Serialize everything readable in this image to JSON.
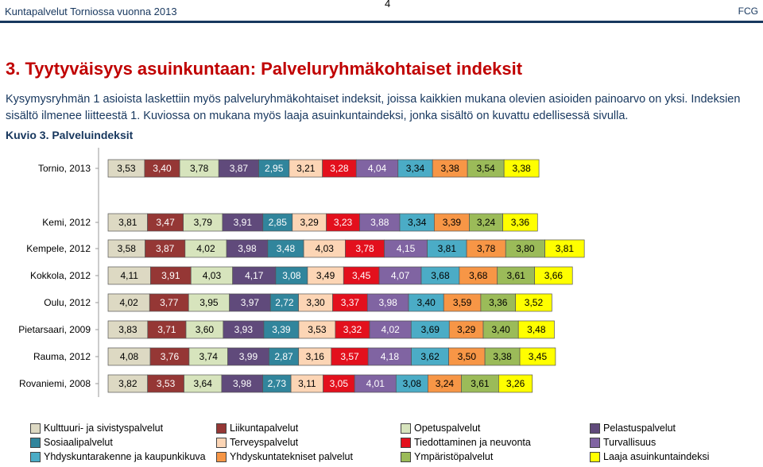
{
  "header": {
    "left": "Kuntapalvelut Torniossa vuonna 2013",
    "page": "4",
    "right": "FCG"
  },
  "heading": "3. Tyytyväisyys asuinkuntaan: Palveluryhmäkohtaiset indeksit",
  "intro": "Kysymysryhmän 1 asioista laskettiin myös palveluryhmäkohtaiset indeksit, joissa kaikkien mukana olevien asioiden painoarvo on yksi. Indeksien sisältö ilmenee liitteestä 1. Kuviossa on mukana myös laaja asuinkuntaindeksi, jonka sisältö on kuvattu edellisessä sivulla.",
  "caption": "Kuvio 3. Palveluindeksit",
  "chart_data": {
    "type": "bar",
    "orientation": "horizontal",
    "stacked": true,
    "categories": [
      "Tornio, 2013",
      "Kemi, 2012",
      "Kempele, 2012",
      "Kokkola, 2012",
      "Oulu, 2012",
      "Pietarsaari, 2009",
      "Rauma, 2012",
      "Rovaniemi, 2008"
    ],
    "legend_position": "bottom",
    "series": [
      {
        "name": "Kulttuuri- ja sivistyspalvelut",
        "color": "#ddd9c3",
        "text_color": "#000000",
        "labels": [
          "3,53",
          "3,81",
          "3,58",
          "4,11",
          "4,02",
          "3,83",
          "4,08",
          "3,82"
        ],
        "values": [
          3.53,
          3.81,
          3.58,
          4.11,
          4.02,
          3.83,
          4.08,
          3.82
        ]
      },
      {
        "name": "Liikuntapalvelut",
        "color": "#953735",
        "text_color": "#ffffff",
        "labels": [
          "3,40",
          "3,47",
          "3,87",
          "3,91",
          "3,77",
          "3,71",
          "3,76",
          "3,53"
        ],
        "values": [
          3.4,
          3.47,
          3.87,
          3.91,
          3.77,
          3.71,
          3.76,
          3.53
        ]
      },
      {
        "name": "Opetuspalvelut",
        "color": "#d7e4bd",
        "text_color": "#000000",
        "labels": [
          "3,78",
          "3,79",
          "4,02",
          "4,03",
          "3,95",
          "3,60",
          "3,74",
          "3,64"
        ],
        "values": [
          3.78,
          3.79,
          4.02,
          4.03,
          3.95,
          3.6,
          3.74,
          3.64
        ]
      },
      {
        "name": "Pelastuspalvelut",
        "color": "#604a7b",
        "text_color": "#ffffff",
        "labels": [
          "3,87",
          "3,91",
          "3,98",
          "4,17",
          "3,97",
          "3,93",
          "3,99",
          "3,98"
        ],
        "values": [
          3.87,
          3.91,
          3.98,
          4.17,
          3.97,
          3.93,
          3.99,
          3.98
        ]
      },
      {
        "name": "Sosiaalipalvelut",
        "color": "#31859c",
        "text_color": "#ffffff",
        "labels": [
          "2,95",
          "2,85",
          "3,48",
          "3,08",
          "2,72",
          "3,39",
          "2,87",
          "2,73"
        ],
        "values": [
          2.95,
          2.85,
          3.48,
          3.08,
          2.72,
          3.39,
          2.87,
          2.73
        ]
      },
      {
        "name": "Terveyspalvelut",
        "color": "#fcd5b5",
        "text_color": "#000000",
        "labels": [
          "3,21",
          "3,29",
          "4,03",
          "3,49",
          "3,30",
          "3,53",
          "3,16",
          "3,11"
        ],
        "values": [
          3.21,
          3.29,
          4.03,
          3.49,
          3.3,
          3.53,
          3.16,
          3.11
        ]
      },
      {
        "name": "Tiedottaminen ja neuvonta",
        "color": "#e3101d",
        "text_color": "#ffffff",
        "labels": [
          "3,28",
          "3,23",
          "3,78",
          "3,45",
          "3,37",
          "3,32",
          "3,57",
          "3,05"
        ],
        "values": [
          3.28,
          3.23,
          3.78,
          3.45,
          3.37,
          3.32,
          3.57,
          3.05
        ]
      },
      {
        "name": "Turvallisuus",
        "color": "#8064a2",
        "text_color": "#ffffff",
        "labels": [
          "4,04",
          "3,88",
          "4,15",
          "4,07",
          "3,98",
          "4,02",
          "4,18",
          "4,01"
        ],
        "values": [
          4.04,
          3.88,
          4.15,
          4.07,
          3.98,
          4.02,
          4.18,
          4.01
        ]
      },
      {
        "name": "Yhdyskuntarakenne ja kaupunkikuva",
        "color": "#4bacc6",
        "text_color": "#000000",
        "labels": [
          "3,34",
          "3,34",
          "3,81",
          "3,68",
          "3,40",
          "3,69",
          "3,62",
          "3,08"
        ],
        "values": [
          3.34,
          3.34,
          3.81,
          3.68,
          3.4,
          3.69,
          3.62,
          3.08
        ]
      },
      {
        "name": "Yhdyskuntatekniset palvelut",
        "color": "#f79646",
        "text_color": "#000000",
        "labels": [
          "3,38",
          "3,39",
          "3,78",
          "3,68",
          "3,59",
          "3,29",
          "3,50",
          "3,24"
        ],
        "values": [
          3.38,
          3.39,
          3.78,
          3.68,
          3.59,
          3.29,
          3.5,
          3.24
        ]
      },
      {
        "name": "Ympäristöpalvelut",
        "color": "#9bbb59",
        "text_color": "#000000",
        "labels": [
          "3,54",
          "3,24",
          "3,80",
          "3,61",
          "3,36",
          "3,40",
          "3,38",
          "3,61"
        ],
        "values": [
          3.54,
          3.24,
          3.8,
          3.61,
          3.36,
          3.4,
          3.38,
          3.61
        ]
      },
      {
        "name": "Laaja asuinkuntaindeksi",
        "color": "#ffff00",
        "text_color": "#000000",
        "labels": [
          "3,38",
          "3,36",
          "3,81",
          "3,66",
          "3,52",
          "3,48",
          "3,45",
          "3,26"
        ],
        "values": [
          3.38,
          3.36,
          3.81,
          3.66,
          3.52,
          3.48,
          3.45,
          3.26
        ]
      }
    ]
  }
}
